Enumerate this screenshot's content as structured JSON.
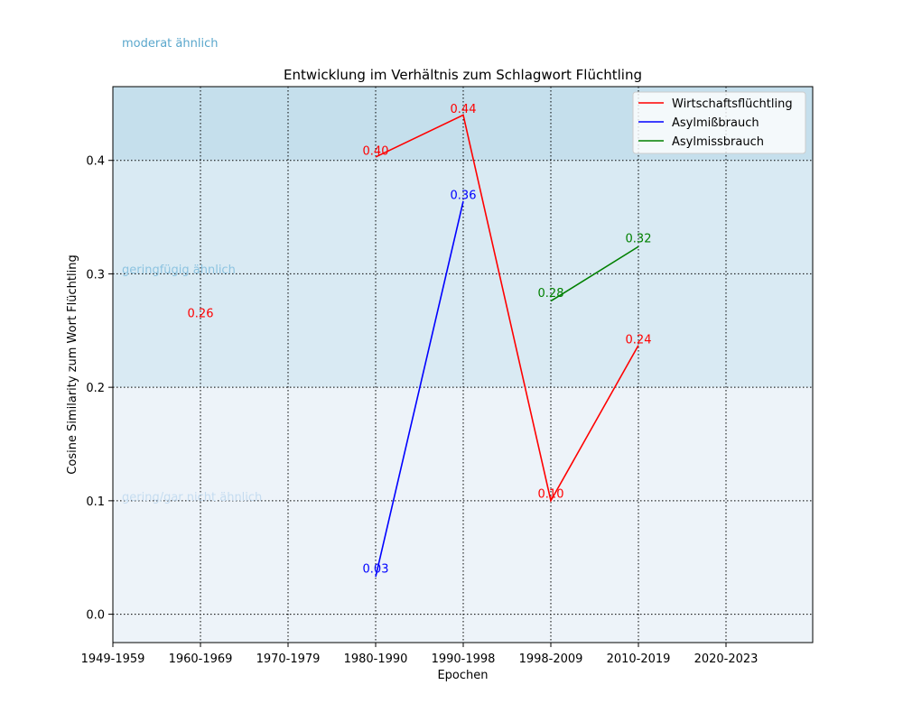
{
  "chart_data": {
    "type": "line",
    "title": "Entwicklung im Verhältnis zum Schlagwort Flüchtling",
    "xlabel": "Epochen",
    "ylabel": "Cosine Similarity zum Wort Flüchtling",
    "categories": [
      "1949-1959",
      "1960-1969",
      "1970-1979",
      "1980-1990",
      "1990-1998",
      "1998-2009",
      "2010-2019",
      "2020-2023"
    ],
    "ylim": [
      -0.025,
      0.465
    ],
    "yticks": [
      "0.0",
      "0.1",
      "0.2",
      "0.3",
      "0.4"
    ],
    "grid": true,
    "legend_position": "top-right",
    "bands": [
      {
        "label": "moderat ähnlich",
        "from": 0.4,
        "to": 0.465,
        "color": "#c5dfec",
        "text_color": "#5aa7cc"
      },
      {
        "label": "geringfügig ähnlich",
        "from": 0.2,
        "to": 0.4,
        "color": "#d9eaf3",
        "text_color": "#8cc3e0"
      },
      {
        "label": "gering/gar nicht ähnlich",
        "from": -0.025,
        "to": 0.2,
        "color": "#edf3f9",
        "text_color": "#c5dcf0"
      }
    ],
    "series": [
      {
        "name": "Wirtschaftsflüchtling",
        "color": "#ff0000",
        "points": [
          {
            "x": "1980-1990",
            "y": 0.403
          },
          {
            "x": "1990-1998",
            "y": 0.44
          },
          {
            "x": "1998-2009",
            "y": 0.1
          },
          {
            "x": "2010-2019",
            "y": 0.237
          }
        ]
      },
      {
        "name": "Asylmißbrauch",
        "color": "#0000ff",
        "points": [
          {
            "x": "1980-1990",
            "y": 0.033
          },
          {
            "x": "1990-1998",
            "y": 0.364
          }
        ]
      },
      {
        "name": "Asylmissbrauch",
        "color": "#008000",
        "points": [
          {
            "x": "1998-2009",
            "y": 0.276
          },
          {
            "x": "2010-2019",
            "y": 0.324
          }
        ]
      }
    ],
    "annotations": [
      {
        "text": "0.26",
        "x": "1960-1969",
        "y": 0.265,
        "color": "#ff0000"
      },
      {
        "text": "0.40",
        "x": "1980-1990",
        "y": 0.408,
        "color": "#ff0000"
      },
      {
        "text": "0.44",
        "x": "1990-1998",
        "y": 0.445,
        "color": "#ff0000"
      },
      {
        "text": "0.10",
        "x": "1998-2009",
        "y": 0.106,
        "color": "#ff0000"
      },
      {
        "text": "0.24",
        "x": "2010-2019",
        "y": 0.242,
        "color": "#ff0000"
      },
      {
        "text": "0.03",
        "x": "1980-1990",
        "y": 0.04,
        "color": "#0000ff"
      },
      {
        "text": "0.36",
        "x": "1990-1998",
        "y": 0.369,
        "color": "#0000ff"
      },
      {
        "text": "0.28",
        "x": "1998-2009",
        "y": 0.283,
        "color": "#008000"
      },
      {
        "text": "0.32",
        "x": "2010-2019",
        "y": 0.331,
        "color": "#008000"
      }
    ]
  }
}
